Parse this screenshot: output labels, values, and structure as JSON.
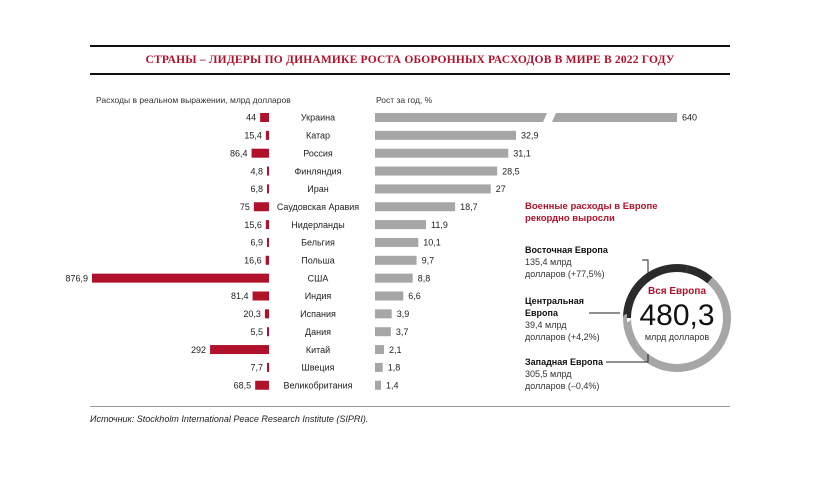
{
  "title": "СТРАНЫ – ЛИДЕРЫ ПО ДИНАМИКЕ РОСТА ОБОРОННЫХ РАСХОДОВ В МИРЕ В 2022 ГОДУ",
  "left_axis_caption": "Расходы в реальном выражении, млрд долларов",
  "right_axis_caption": "Рост за год, %",
  "chart_data": {
    "type": "bar",
    "categories": [
      "Украина",
      "Катар",
      "Россия",
      "Финляндия",
      "Иран",
      "Саудовская Аравия",
      "Нидерланды",
      "Бельгия",
      "Польша",
      "США",
      "Индия",
      "Испания",
      "Дания",
      "Китай",
      "Швеция",
      "Великобритания"
    ],
    "series": [
      {
        "values": [
          44,
          15.4,
          86.4,
          4.8,
          6.8,
          75,
          15.6,
          6.9,
          16.6,
          876.9,
          81.4,
          20.3,
          5.5,
          292,
          7.7,
          68.5
        ],
        "labels": [
          "44",
          "15,4",
          "86,4",
          "4,8",
          "6,8",
          "75",
          "15,6",
          "6,9",
          "16,6",
          "876,9",
          "81,4",
          "20,3",
          "5,5",
          "292",
          "7,7",
          "68,5"
        ],
        "color": "#b0122b"
      },
      {
        "values": [
          640,
          32.9,
          31.1,
          28.5,
          27,
          18.7,
          11.9,
          10.1,
          9.7,
          8.8,
          6.6,
          3.9,
          3.7,
          2.1,
          1.8,
          1.4
        ],
        "labels": [
          "640",
          "32,9",
          "31,1",
          "28,5",
          "27",
          "18,7",
          "11,9",
          "10,1",
          "9,7",
          "8,8",
          "6,6",
          "3,9",
          "3,7",
          "2,1",
          "1,8",
          "1,4"
        ],
        "color": "#a6a6a6",
        "axis_break_after_first": true
      }
    ],
    "xlim_left": [
      0,
      876.9
    ],
    "xlim_right": [
      0,
      35
    ]
  },
  "europe": {
    "headline": "Военные расходы в Европе рекордно выросли",
    "total_label": "Вся Европа",
    "total_value": "480,3",
    "total_unit": "млрд долларов",
    "ring_colors": {
      "dark": "#2b2b2b",
      "light": "#a6a6a6"
    },
    "regions": [
      {
        "name": "Восточная Европа",
        "detail_1": "135,4 млрд",
        "detail_2": "долларов (+77,5%)",
        "value": 135.4
      },
      {
        "name_1": "Центральная",
        "name_2": "Европа",
        "detail_1": "39,4 млрд",
        "detail_2": "долларов (+4,2%)",
        "value": 39.4
      },
      {
        "name": "Западная Европа",
        "detail_1": "305,5 млрд",
        "detail_2": "долларов (–0,4%)",
        "value": 305.5
      }
    ]
  },
  "source": "Источник: Stockholm International Peace Research Institute (SIPRI)."
}
